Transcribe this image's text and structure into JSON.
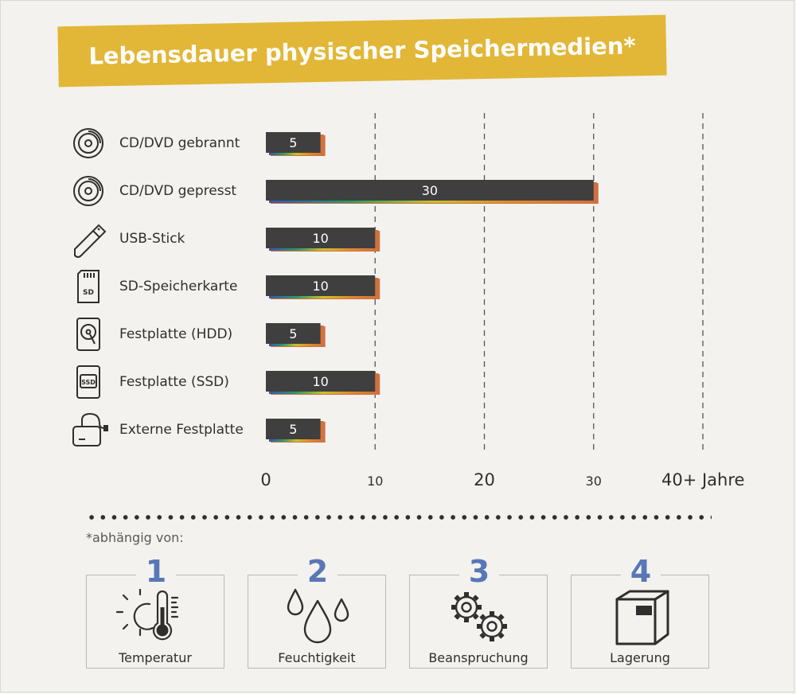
{
  "title": "Lebensdauer physischer Speichermedien*",
  "chart_data": {
    "type": "bar",
    "orientation": "horizontal",
    "categories": [
      "CD/DVD gebrannt",
      "CD/DVD gepresst",
      "USB-Stick",
      "SD-Speicherkarte",
      "Festplatte (HDD)",
      "Festplatte (SSD)",
      "Externe Festplatte"
    ],
    "category_icons": [
      "disc-icon",
      "disc-icon",
      "usb-stick-icon",
      "sd-card-icon",
      "hdd-icon",
      "ssd-icon",
      "external-drive-icon"
    ],
    "values": [
      5,
      30,
      10,
      10,
      5,
      10,
      5
    ],
    "value_labels": [
      "5",
      "30",
      "10",
      "10",
      "5",
      "10",
      "5"
    ],
    "xlim": [
      0,
      40
    ],
    "ticks": [
      0,
      10,
      20,
      30,
      40
    ],
    "tick_labels": [
      "0",
      "10",
      "20",
      "30",
      "40+ Jahre"
    ],
    "grid": "vertical-dashed",
    "bar_color": "#3f3f3f"
  },
  "footnote": "*abhängig von:",
  "factors": [
    {
      "number": "1",
      "label": "Temperatur",
      "icon": "thermometer-sun-icon"
    },
    {
      "number": "2",
      "label": "Feuchtigkeit",
      "icon": "water-drops-icon"
    },
    {
      "number": "3",
      "label": "Beanspruchung",
      "icon": "gears-icon"
    },
    {
      "number": "4",
      "label": "Lagerung",
      "icon": "storage-box-icon"
    }
  ],
  "colors": {
    "banner": "#e2b637",
    "accent_numbers": "#5877b5",
    "bar": "#3f3f3f",
    "bar_shadow": "#d1703f"
  }
}
